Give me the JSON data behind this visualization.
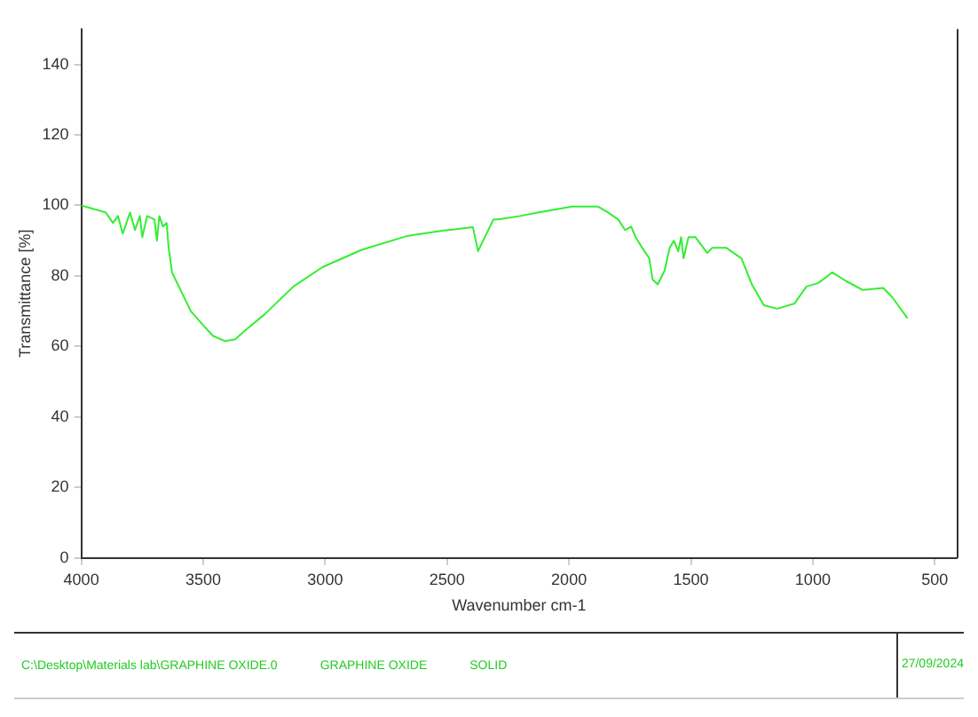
{
  "chart_data": {
    "type": "line",
    "xlabel": "Wavenumber cm-1",
    "ylabel": "Transmittance [%]",
    "x": [
      4000,
      3950,
      3900,
      3870,
      3850,
      3830,
      3800,
      3780,
      3760,
      3750,
      3730,
      3700,
      3690,
      3680,
      3665,
      3650,
      3642,
      3628,
      3600,
      3551,
      3500,
      3460,
      3411,
      3370,
      3320,
      3250,
      3130,
      3011,
      2850,
      2660,
      2520,
      2394,
      2373,
      2359,
      2310,
      2290,
      2200,
      2127,
      1987,
      1882,
      1840,
      1798,
      1770,
      1745,
      1727,
      1700,
      1671,
      1657,
      1636,
      1608,
      1587,
      1570,
      1552,
      1540,
      1530,
      1510,
      1482,
      1460,
      1433,
      1412,
      1356,
      1293,
      1250,
      1201,
      1145,
      1075,
      1026,
      977,
      921,
      865,
      795,
      711,
      675,
      612
    ],
    "series": [
      {
        "color": "#33ee33",
        "values": [
          100,
          99,
          98,
          95,
          97,
          92,
          98,
          93,
          97,
          91,
          97,
          96,
          90,
          97,
          94,
          95,
          88,
          81,
          77,
          70,
          66,
          63,
          61.5,
          62,
          65,
          69,
          77,
          82.5,
          87.4,
          91.4,
          92.8,
          93.8,
          87,
          89,
          96,
          96,
          97,
          98,
          99.7,
          99.7,
          98,
          96,
          93,
          94,
          91,
          88,
          85,
          79,
          77.6,
          81.5,
          88,
          90,
          87,
          91,
          85,
          91,
          91,
          89,
          86.5,
          88,
          88,
          85,
          77.6,
          71.7,
          70.7,
          72.2,
          77,
          78,
          81,
          78.6,
          76,
          76.6,
          74,
          68
        ]
      }
    ],
    "xlim": [
      4000,
      410
    ],
    "xticks": [
      4000,
      3500,
      3000,
      2500,
      2000,
      1500,
      1000,
      500
    ],
    "ylim": [
      0,
      150
    ],
    "yticks": [
      0,
      20,
      40,
      60,
      80,
      100,
      120,
      140
    ],
    "grid": false,
    "legend": false,
    "marker": "none",
    "line_style": "solid",
    "annotations": [
      "C:\\Desktop\\Materials lab\\GRAPHINE OXIDE.0",
      "GRAPHINE OXIDE",
      "SOLID",
      "27/09/2024"
    ]
  }
}
